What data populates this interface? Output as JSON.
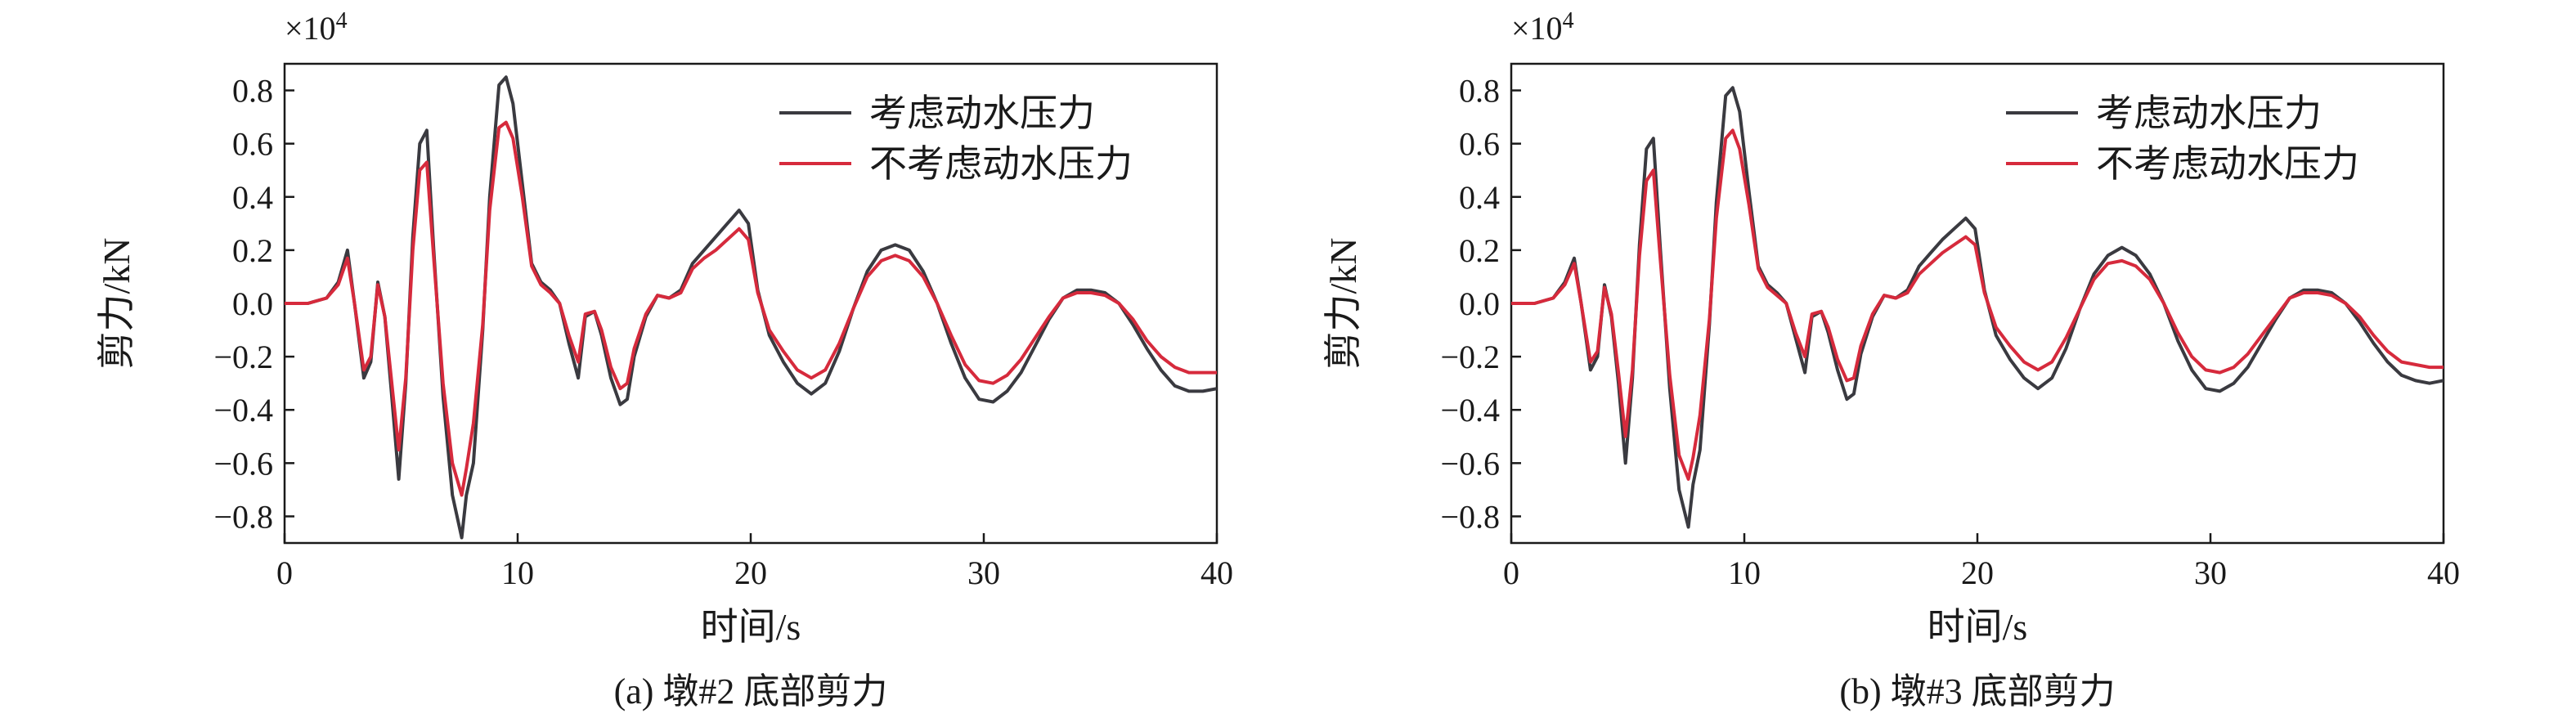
{
  "chart_data": [
    {
      "type": "line",
      "caption": "(a) 墩#2 底部剪力",
      "xlabel": "时间/s",
      "ylabel": "剪力/kN",
      "multiplier": "×10",
      "multiplier_exp": "4",
      "xlim": [
        0,
        40
      ],
      "ylim": [
        -0.9,
        0.9
      ],
      "xticks": [
        0,
        10,
        20,
        30,
        40
      ],
      "xtick_labels": [
        "0",
        "10",
        "20",
        "30",
        "40"
      ],
      "yticks": [
        -0.8,
        -0.6,
        -0.4,
        -0.2,
        0.0,
        0.2,
        0.4,
        0.6,
        0.8
      ],
      "ytick_labels": [
        "−0.8",
        "−0.6",
        "−0.4",
        "−0.2",
        "0.0",
        "0.2",
        "0.4",
        "0.6",
        "0.8"
      ],
      "legend_position": "top-right",
      "grid": false,
      "series": [
        {
          "name": "考虑动水压力",
          "color": "#3a3a40",
          "x": [
            0,
            1,
            1.8,
            2.3,
            2.7,
            3.0,
            3.4,
            3.7,
            4.0,
            4.3,
            4.6,
            4.9,
            5.2,
            5.5,
            5.8,
            6.1,
            6.4,
            6.8,
            7.2,
            7.6,
            7.8,
            8.1,
            8.5,
            8.8,
            9.2,
            9.5,
            9.8,
            10.2,
            10.6,
            11.0,
            11.4,
            11.8,
            12.2,
            12.6,
            12.9,
            13.3,
            13.6,
            14.0,
            14.4,
            14.7,
            15.0,
            15.5,
            16.0,
            16.5,
            17.0,
            17.5,
            18.0,
            18.5,
            19.0,
            19.5,
            19.9,
            20.3,
            20.8,
            21.4,
            22.0,
            22.6,
            23.2,
            23.8,
            24.4,
            25.0,
            25.6,
            26.2,
            26.8,
            27.4,
            28.0,
            28.6,
            29.2,
            29.8,
            30.4,
            31.0,
            31.6,
            32.2,
            32.8,
            33.4,
            34.0,
            34.6,
            35.2,
            35.8,
            36.4,
            37.0,
            37.6,
            38.2,
            38.8,
            39.4,
            40.0
          ],
          "y": [
            0.0,
            0.0,
            0.02,
            0.08,
            0.2,
            0.0,
            -0.28,
            -0.22,
            0.08,
            -0.05,
            -0.35,
            -0.66,
            -0.3,
            0.25,
            0.6,
            0.65,
            0.2,
            -0.35,
            -0.72,
            -0.88,
            -0.72,
            -0.6,
            -0.1,
            0.4,
            0.82,
            0.85,
            0.75,
            0.45,
            0.15,
            0.08,
            0.05,
            0.0,
            -0.15,
            -0.28,
            -0.05,
            -0.03,
            -0.12,
            -0.28,
            -0.38,
            -0.36,
            -0.2,
            -0.05,
            0.03,
            0.02,
            0.05,
            0.15,
            0.2,
            0.25,
            0.3,
            0.35,
            0.3,
            0.05,
            -0.12,
            -0.22,
            -0.3,
            -0.34,
            -0.3,
            -0.18,
            -0.02,
            0.12,
            0.2,
            0.22,
            0.2,
            0.12,
            0.0,
            -0.15,
            -0.28,
            -0.36,
            -0.37,
            -0.33,
            -0.26,
            -0.16,
            -0.06,
            0.02,
            0.05,
            0.05,
            0.04,
            0.0,
            -0.08,
            -0.17,
            -0.25,
            -0.31,
            -0.33,
            -0.33,
            -0.32
          ]
        },
        {
          "name": "不考虑动水压力",
          "color": "#d62a3c",
          "x": [
            0,
            1,
            1.8,
            2.3,
            2.7,
            3.0,
            3.4,
            3.7,
            4.0,
            4.3,
            4.6,
            4.9,
            5.2,
            5.5,
            5.8,
            6.1,
            6.4,
            6.8,
            7.2,
            7.6,
            7.8,
            8.1,
            8.5,
            8.8,
            9.2,
            9.5,
            9.8,
            10.2,
            10.6,
            11.0,
            11.4,
            11.8,
            12.2,
            12.6,
            12.9,
            13.3,
            13.6,
            14.0,
            14.4,
            14.7,
            15.0,
            15.5,
            16.0,
            16.5,
            17.0,
            17.5,
            18.0,
            18.5,
            19.0,
            19.5,
            19.9,
            20.3,
            20.8,
            21.4,
            22.0,
            22.6,
            23.2,
            23.8,
            24.4,
            25.0,
            25.6,
            26.2,
            26.8,
            27.4,
            28.0,
            28.6,
            29.2,
            29.8,
            30.4,
            31.0,
            31.6,
            32.2,
            32.8,
            33.4,
            34.0,
            34.6,
            35.2,
            35.8,
            36.4,
            37.0,
            37.6,
            38.2,
            38.8,
            39.4,
            40.0
          ],
          "y": [
            0.0,
            0.0,
            0.02,
            0.07,
            0.17,
            0.0,
            -0.25,
            -0.2,
            0.07,
            -0.05,
            -0.3,
            -0.55,
            -0.28,
            0.2,
            0.5,
            0.53,
            0.17,
            -0.3,
            -0.6,
            -0.72,
            -0.62,
            -0.45,
            -0.08,
            0.35,
            0.66,
            0.68,
            0.62,
            0.4,
            0.14,
            0.07,
            0.04,
            0.0,
            -0.12,
            -0.22,
            -0.04,
            -0.03,
            -0.1,
            -0.24,
            -0.32,
            -0.3,
            -0.17,
            -0.04,
            0.03,
            0.02,
            0.04,
            0.13,
            0.17,
            0.2,
            0.24,
            0.28,
            0.24,
            0.04,
            -0.1,
            -0.18,
            -0.25,
            -0.28,
            -0.25,
            -0.15,
            -0.02,
            0.1,
            0.16,
            0.18,
            0.16,
            0.1,
            0.0,
            -0.12,
            -0.23,
            -0.29,
            -0.3,
            -0.27,
            -0.21,
            -0.13,
            -0.05,
            0.02,
            0.04,
            0.04,
            0.03,
            0.0,
            -0.06,
            -0.14,
            -0.2,
            -0.24,
            -0.26,
            -0.26,
            -0.26
          ]
        }
      ]
    },
    {
      "type": "line",
      "caption": "(b) 墩#3 底部剪力",
      "xlabel": "时间/s",
      "ylabel": "剪力/kN",
      "multiplier": "×10",
      "multiplier_exp": "4",
      "xlim": [
        0,
        40
      ],
      "ylim": [
        -0.9,
        0.9
      ],
      "xticks": [
        0,
        10,
        20,
        30,
        40
      ],
      "xtick_labels": [
        "0",
        "10",
        "20",
        "30",
        "40"
      ],
      "yticks": [
        -0.8,
        -0.6,
        -0.4,
        -0.2,
        0.0,
        0.2,
        0.4,
        0.6,
        0.8
      ],
      "ytick_labels": [
        "−0.8",
        "−0.6",
        "−0.4",
        "−0.2",
        "0.0",
        "0.2",
        "0.4",
        "0.6",
        "0.8"
      ],
      "legend_position": "top-right",
      "grid": false,
      "series": [
        {
          "name": "考虑动水压力",
          "color": "#3a3a40",
          "x": [
            0,
            1,
            1.8,
            2.3,
            2.7,
            3.0,
            3.4,
            3.7,
            4.0,
            4.3,
            4.6,
            4.9,
            5.2,
            5.5,
            5.8,
            6.1,
            6.4,
            6.8,
            7.2,
            7.6,
            7.8,
            8.1,
            8.5,
            8.8,
            9.2,
            9.5,
            9.8,
            10.2,
            10.6,
            11.0,
            11.4,
            11.8,
            12.2,
            12.6,
            12.9,
            13.3,
            13.6,
            14.0,
            14.4,
            14.7,
            15.0,
            15.5,
            16.0,
            16.5,
            17.0,
            17.5,
            18.0,
            18.5,
            19.0,
            19.5,
            19.9,
            20.3,
            20.8,
            21.4,
            22.0,
            22.6,
            23.2,
            23.8,
            24.4,
            25.0,
            25.6,
            26.2,
            26.8,
            27.4,
            28.0,
            28.6,
            29.2,
            29.8,
            30.4,
            31.0,
            31.6,
            32.2,
            32.8,
            33.4,
            34.0,
            34.6,
            35.2,
            35.8,
            36.4,
            37.0,
            37.6,
            38.2,
            38.8,
            39.4,
            40.0
          ],
          "y": [
            0.0,
            0.0,
            0.02,
            0.08,
            0.17,
            0.0,
            -0.25,
            -0.2,
            0.07,
            -0.05,
            -0.3,
            -0.6,
            -0.28,
            0.22,
            0.58,
            0.62,
            0.2,
            -0.32,
            -0.7,
            -0.84,
            -0.68,
            -0.55,
            -0.08,
            0.38,
            0.78,
            0.81,
            0.72,
            0.42,
            0.14,
            0.07,
            0.04,
            0.0,
            -0.13,
            -0.26,
            -0.05,
            -0.03,
            -0.11,
            -0.25,
            -0.36,
            -0.34,
            -0.19,
            -0.05,
            0.03,
            0.02,
            0.05,
            0.14,
            0.19,
            0.24,
            0.28,
            0.32,
            0.28,
            0.05,
            -0.12,
            -0.21,
            -0.28,
            -0.32,
            -0.28,
            -0.17,
            -0.02,
            0.11,
            0.18,
            0.21,
            0.18,
            0.11,
            0.0,
            -0.14,
            -0.25,
            -0.32,
            -0.33,
            -0.3,
            -0.24,
            -0.15,
            -0.06,
            0.02,
            0.05,
            0.05,
            0.04,
            0.0,
            -0.07,
            -0.15,
            -0.22,
            -0.27,
            -0.29,
            -0.3,
            -0.29
          ]
        },
        {
          "name": "不考虑动水压力",
          "color": "#d62a3c",
          "x": [
            0,
            1,
            1.8,
            2.3,
            2.7,
            3.0,
            3.4,
            3.7,
            4.0,
            4.3,
            4.6,
            4.9,
            5.2,
            5.5,
            5.8,
            6.1,
            6.4,
            6.8,
            7.2,
            7.6,
            7.8,
            8.1,
            8.5,
            8.8,
            9.2,
            9.5,
            9.8,
            10.2,
            10.6,
            11.0,
            11.4,
            11.8,
            12.2,
            12.6,
            12.9,
            13.3,
            13.6,
            14.0,
            14.4,
            14.7,
            15.0,
            15.5,
            16.0,
            16.5,
            17.0,
            17.5,
            18.0,
            18.5,
            19.0,
            19.5,
            19.9,
            20.3,
            20.8,
            21.4,
            22.0,
            22.6,
            23.2,
            23.8,
            24.4,
            25.0,
            25.6,
            26.2,
            26.8,
            27.4,
            28.0,
            28.6,
            29.2,
            29.8,
            30.4,
            31.0,
            31.6,
            32.2,
            32.8,
            33.4,
            34.0,
            34.6,
            35.2,
            35.8,
            36.4,
            37.0,
            37.6,
            38.2,
            38.8,
            39.4,
            40.0
          ],
          "y": [
            0.0,
            0.0,
            0.02,
            0.07,
            0.15,
            0.0,
            -0.22,
            -0.18,
            0.06,
            -0.04,
            -0.26,
            -0.5,
            -0.25,
            0.18,
            0.46,
            0.5,
            0.16,
            -0.27,
            -0.57,
            -0.66,
            -0.58,
            -0.42,
            -0.06,
            0.32,
            0.62,
            0.65,
            0.58,
            0.37,
            0.13,
            0.06,
            0.03,
            0.0,
            -0.11,
            -0.2,
            -0.04,
            -0.03,
            -0.09,
            -0.21,
            -0.29,
            -0.28,
            -0.16,
            -0.04,
            0.03,
            0.02,
            0.04,
            0.11,
            0.15,
            0.19,
            0.22,
            0.25,
            0.22,
            0.04,
            -0.09,
            -0.16,
            -0.22,
            -0.25,
            -0.22,
            -0.13,
            -0.02,
            0.09,
            0.15,
            0.16,
            0.14,
            0.09,
            0.0,
            -0.11,
            -0.2,
            -0.25,
            -0.26,
            -0.24,
            -0.19,
            -0.12,
            -0.05,
            0.02,
            0.04,
            0.04,
            0.03,
            0.0,
            -0.05,
            -0.12,
            -0.18,
            -0.22,
            -0.23,
            -0.24,
            -0.24
          ]
        }
      ]
    }
  ]
}
